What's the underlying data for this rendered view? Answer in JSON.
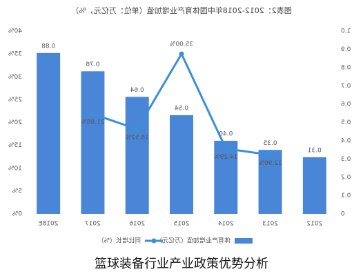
{
  "chart_data": {
    "type": "bar-line",
    "title": "图表2：2012-2018年中国体育产业增加值（单位：万亿元，%）",
    "caption": "篮球装备行业产业政策优势分析",
    "categories": [
      "2012",
      "2013",
      "2014",
      "2015",
      "2016",
      "2017",
      "2018E"
    ],
    "series": [
      {
        "name": "体育产业增加值（万亿元）",
        "type": "bar",
        "color": "#4a86d8",
        "values": [
          0.31,
          0.35,
          0.4,
          0.54,
          0.64,
          0.78,
          0.88
        ],
        "value_labels": [
          "0.31",
          "0.35",
          "0.40",
          "0.54",
          "0.64",
          "0.78",
          "0.88"
        ]
      },
      {
        "name": "同比增长（%）",
        "type": "line",
        "axis": "y2",
        "color": "#3a8fd6",
        "values": [
          null,
          12.9,
          14.29,
          35.0,
          18.52,
          21.88,
          null
        ],
        "value_labels": [
          null,
          "12.90%",
          "14.29%",
          "35.00%",
          "18.52%",
          "21.88%",
          null
        ]
      }
    ],
    "ylim": [
      0,
      1
    ],
    "yticks": [
      0,
      0.1,
      0.2,
      0.3,
      0.4,
      0.5,
      0.6,
      0.7,
      0.8,
      0.9,
      {
        "value": 1,
        "label": "1.0"
      }
    ],
    "y2lim": [
      0,
      40
    ],
    "y2ticks": [
      {
        "value": 0,
        "label": "0%"
      },
      {
        "value": 5,
        "label": "5%"
      },
      {
        "value": 10,
        "label": "10%"
      },
      {
        "value": 15,
        "label": "15%"
      },
      {
        "value": 20,
        "label": "20%"
      },
      {
        "value": 25,
        "label": "25%"
      },
      {
        "value": 30,
        "label": "30%"
      },
      {
        "value": 35,
        "label": "35%"
      },
      {
        "value": 40,
        "label": "40%"
      }
    ],
    "mirrored": true,
    "grid": false
  }
}
